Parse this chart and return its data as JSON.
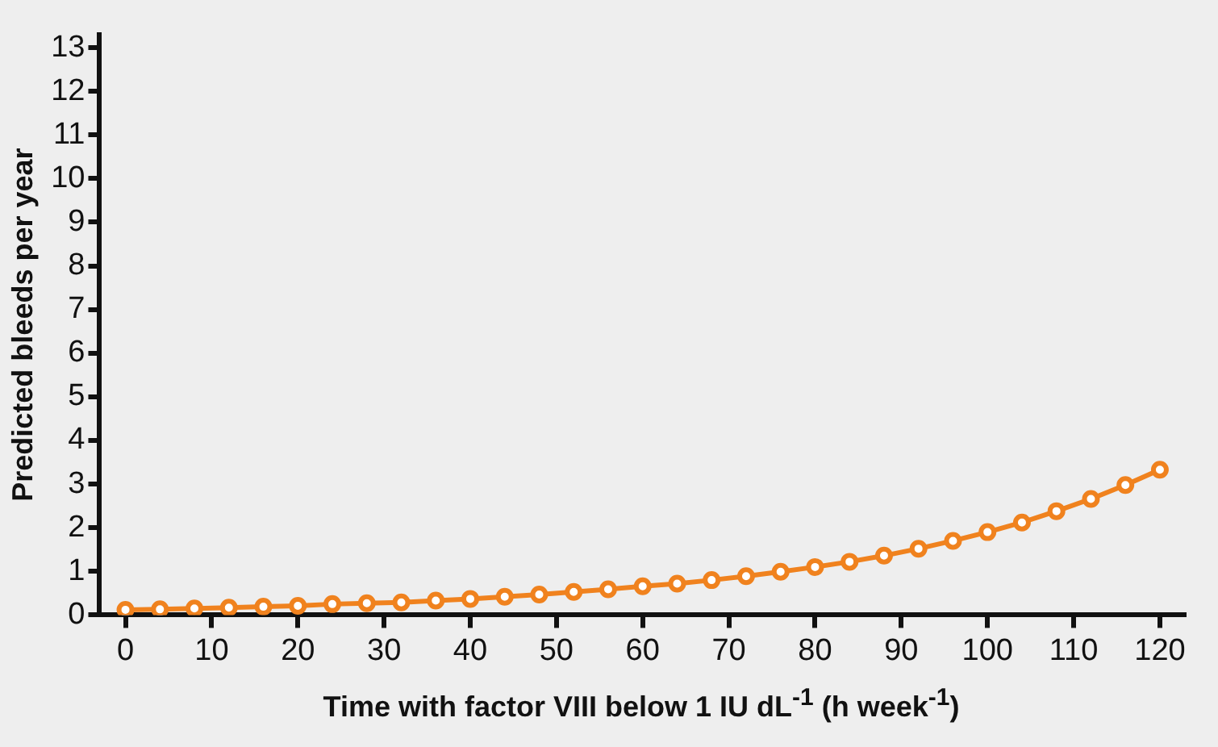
{
  "chart_data": {
    "type": "line",
    "xlabel": "Time with factor VIII below 1 IU dL$^{-1}$ (h week$^{-1}$)",
    "ylabel": "Predicted bleeds per year",
    "x": [
      0,
      4,
      8,
      12,
      16,
      20,
      24,
      28,
      32,
      36,
      40,
      44,
      48,
      52,
      56,
      60,
      64,
      68,
      72,
      76,
      80,
      84,
      88,
      92,
      96,
      100,
      104,
      108,
      112,
      116,
      120
    ],
    "series": [
      {
        "color": "#f0821e",
        "values": [
          0.12,
          0.13,
          0.15,
          0.17,
          0.19,
          0.21,
          0.25,
          0.27,
          0.29,
          0.33,
          0.37,
          0.42,
          0.47,
          0.53,
          0.59,
          0.66,
          0.72,
          0.8,
          0.89,
          0.99,
          1.1,
          1.22,
          1.36,
          1.52,
          1.7,
          1.9,
          2.12,
          2.38,
          2.66,
          2.98,
          3.33
        ]
      }
    ],
    "xlim": [
      -3,
      123
    ],
    "xticks": [
      0,
      10,
      20,
      30,
      40,
      50,
      60,
      70,
      80,
      90,
      100,
      110,
      120
    ],
    "ylim": [
      0,
      13.3
    ],
    "yticks": [
      0,
      1,
      2,
      3,
      4,
      5,
      6,
      7,
      8,
      9,
      10,
      11,
      12,
      13
    ],
    "grid": false,
    "legend": false,
    "marker": "circle",
    "line_style": "solid"
  }
}
